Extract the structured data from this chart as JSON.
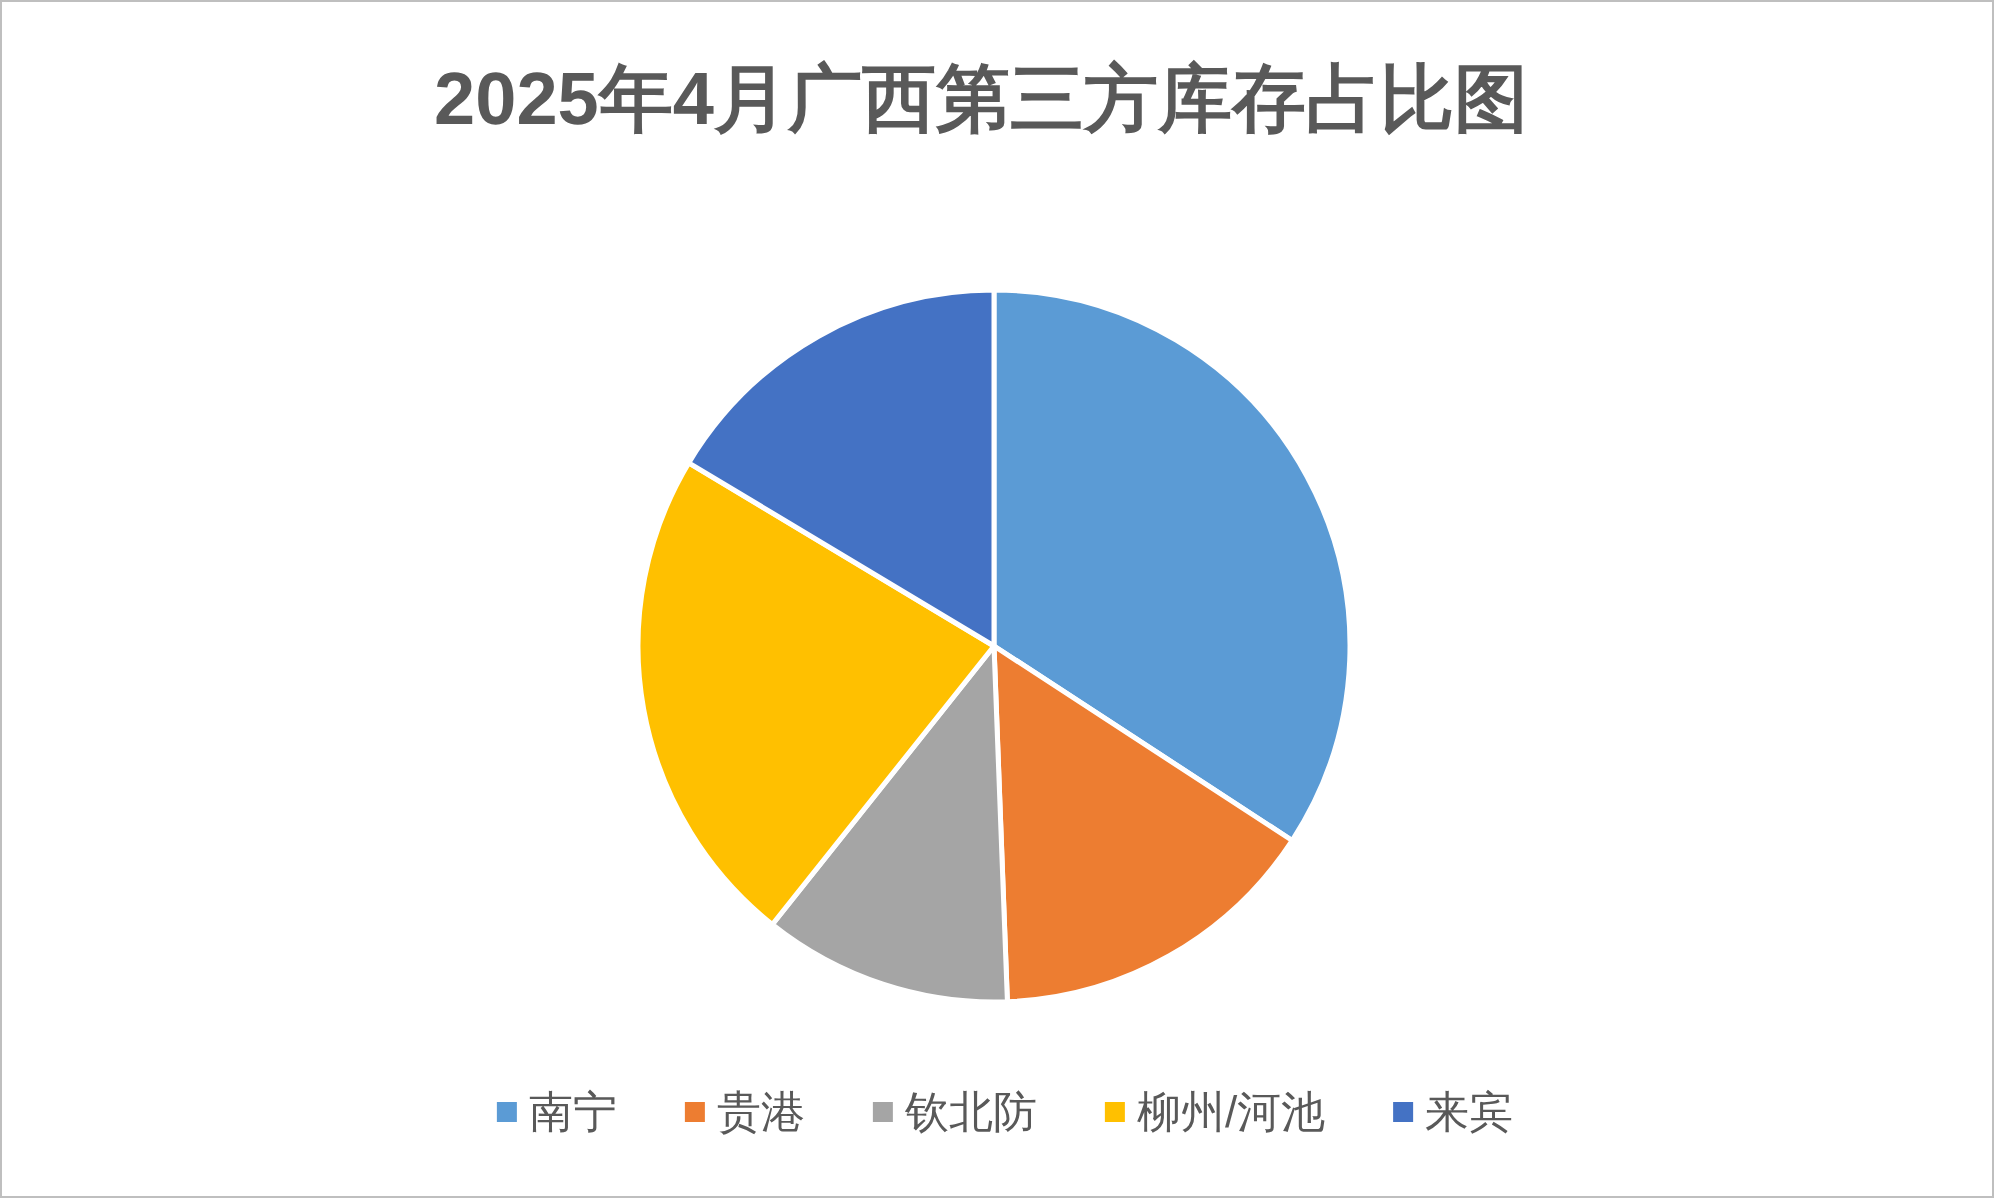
{
  "chart_data": {
    "type": "pie",
    "title": "2025年4月广西第三方库存占比图",
    "categories": [
      "南宁",
      "贵港",
      "钦北防",
      "柳州/河池",
      "来宾"
    ],
    "values": [
      34.2,
      15.2,
      11.3,
      22.9,
      16.4
    ],
    "colors": [
      "#5b9bd5",
      "#ed7d31",
      "#a5a5a5",
      "#ffc000",
      "#4472c4"
    ],
    "legend": "bottom"
  }
}
